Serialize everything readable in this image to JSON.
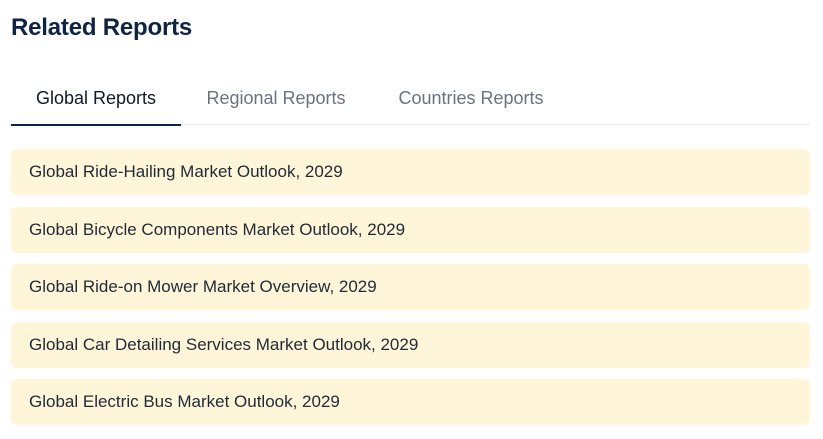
{
  "section": {
    "title": "Related Reports"
  },
  "tabs": [
    {
      "label": "Global Reports",
      "active": true
    },
    {
      "label": "Regional Reports",
      "active": false
    },
    {
      "label": "Countries Reports",
      "active": false
    }
  ],
  "reports": [
    {
      "title": "Global Ride-Hailing Market Outlook, 2029"
    },
    {
      "title": "Global Bicycle Components Market Outlook, 2029"
    },
    {
      "title": "Global Ride-on Mower Market Overview, 2029"
    },
    {
      "title": "Global Car Detailing Services Market Outlook, 2029"
    },
    {
      "title": "Global Electric Bus Market Outlook, 2029"
    }
  ],
  "colors": {
    "accent": "#0f2440",
    "item_background": "#fff6d9",
    "inactive_tab": "#6b7280"
  }
}
